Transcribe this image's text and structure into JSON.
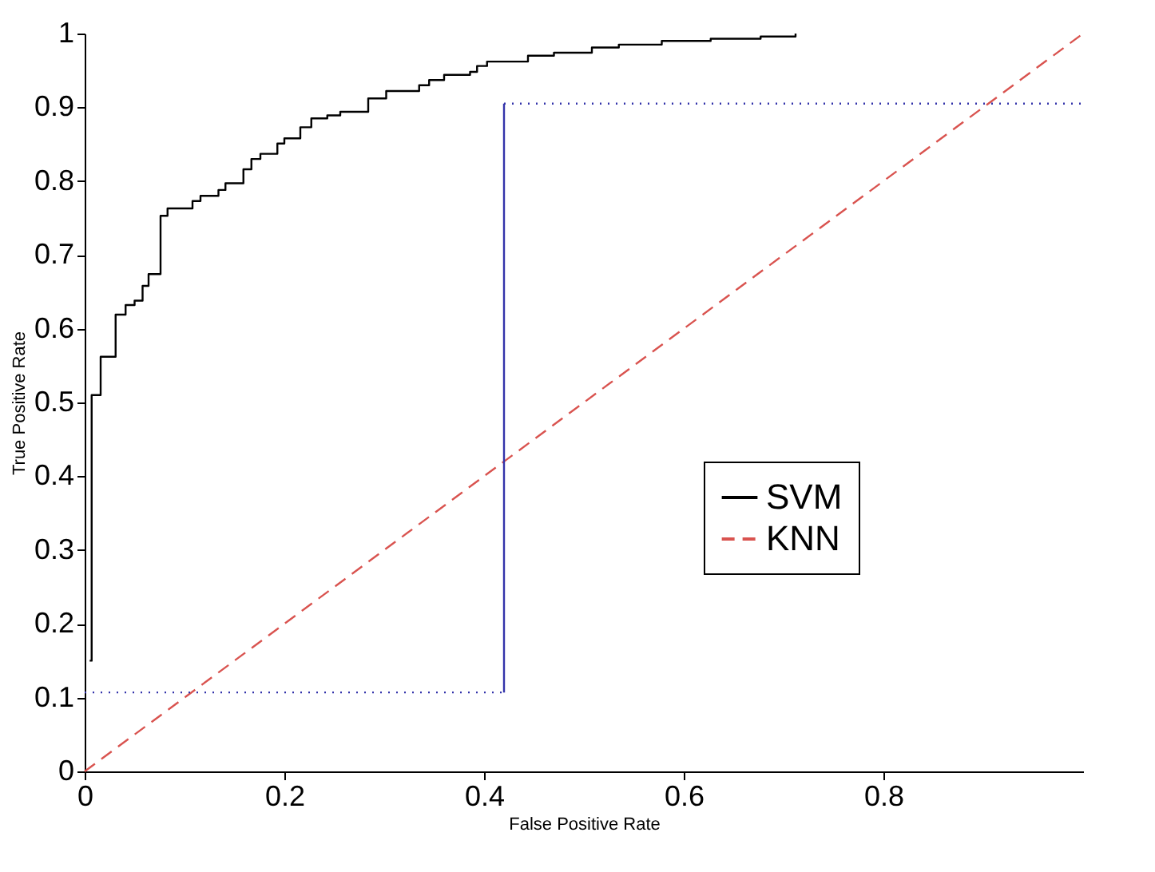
{
  "chart_data": {
    "type": "line",
    "xlabel": "False Positive Rate",
    "ylabel": "True Positive Rate",
    "xlim": [
      0,
      1
    ],
    "ylim": [
      0,
      1
    ],
    "xticks": [
      0,
      0.2,
      0.4,
      0.6,
      0.8
    ],
    "yticks": [
      0,
      0.1,
      0.2,
      0.3,
      0.4,
      0.5,
      0.6,
      0.7,
      0.8,
      0.9,
      1
    ],
    "grid": false,
    "legend": "right",
    "marker": "none",
    "series": [
      {
        "name": "SVM",
        "type": "step",
        "color": "#000000",
        "line_style": "solid",
        "x": [
          0.005,
          0.007,
          0.016,
          0.031,
          0.041,
          0.05,
          0.058,
          0.064,
          0.076,
          0.083,
          0.108,
          0.116,
          0.134,
          0.141,
          0.159,
          0.167,
          0.176,
          0.193,
          0.2,
          0.216,
          0.227,
          0.243,
          0.256,
          0.284,
          0.302,
          0.335,
          0.345,
          0.36,
          0.386,
          0.393,
          0.403,
          0.444,
          0.47,
          0.508,
          0.535,
          0.578,
          0.627,
          0.677,
          0.712
        ],
        "values": [
          0.15,
          0.51,
          0.562,
          0.619,
          0.632,
          0.638,
          0.658,
          0.674,
          0.753,
          0.763,
          0.773,
          0.78,
          0.788,
          0.797,
          0.816,
          0.83,
          0.837,
          0.851,
          0.858,
          0.873,
          0.885,
          0.889,
          0.894,
          0.912,
          0.922,
          0.93,
          0.937,
          0.944,
          0.948,
          0.956,
          0.962,
          0.97,
          0.974,
          0.981,
          0.985,
          0.99,
          0.993,
          0.996,
          1.0
        ]
      },
      {
        "name": "KNN",
        "color": "#d9534f",
        "line_style": "dashed",
        "x": [
          0,
          1
        ],
        "values": [
          0,
          1
        ]
      },
      {
        "color": "#3333aa",
        "line_style": "solid",
        "x": [
          0.42,
          0.42
        ],
        "values": [
          0.107,
          0.905
        ]
      },
      {
        "color": "#3333aa",
        "line_style": "dotted",
        "x": [
          0,
          0.42
        ],
        "values": [
          0.107,
          0.107
        ]
      },
      {
        "color": "#3333aa",
        "line_style": "dotted",
        "x": [
          0.42,
          1
        ],
        "values": [
          0.905,
          0.905
        ]
      }
    ]
  }
}
